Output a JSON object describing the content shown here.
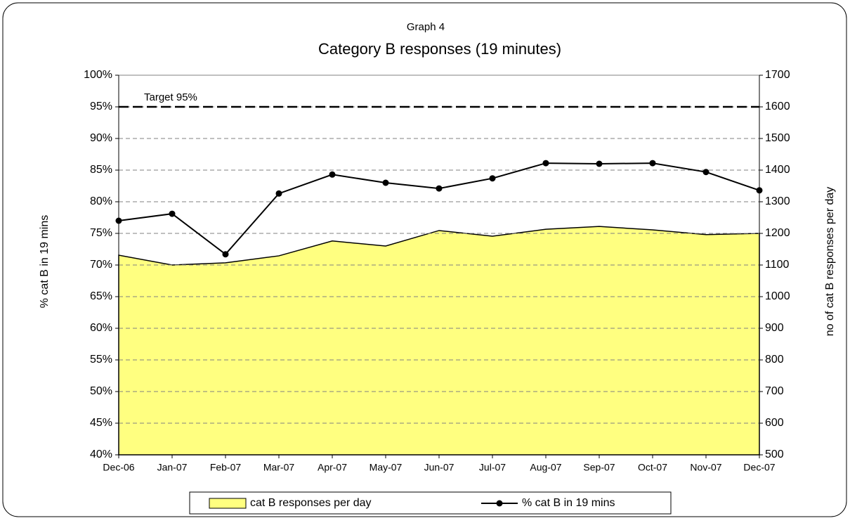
{
  "chart_data": {
    "type": "combo",
    "supertitle": "Graph 4",
    "title": "Category B responses (19 minutes)",
    "y_label": "% cat B in 19 mins",
    "y2_label": "no of cat B responses per day",
    "categories": [
      "Dec-06",
      "Jan-07",
      "Feb-07",
      "Mar-07",
      "Apr-07",
      "May-07",
      "Jun-07",
      "Jul-07",
      "Aug-07",
      "Sep-07",
      "Oct-07",
      "Nov-07",
      "Dec-07"
    ],
    "series": [
      {
        "name": "cat B responses per day",
        "type": "area",
        "axis": "y2",
        "color": "#ffff80",
        "values": [
          1131,
          1100,
          1107,
          1129,
          1176,
          1160,
          1209,
          1191,
          1213,
          1222,
          1211,
          1196,
          1200
        ]
      },
      {
        "name": "% cat B in 19 mins",
        "type": "line",
        "axis": "y",
        "color": "#000000",
        "values": [
          77.0,
          78.1,
          71.7,
          81.3,
          84.3,
          83.0,
          82.1,
          83.7,
          86.1,
          86.0,
          86.1,
          84.7,
          81.8
        ]
      }
    ],
    "ylim": [
      40,
      100
    ],
    "yticks": [
      {
        "value": 40,
        "label": "40%"
      },
      {
        "value": 45,
        "label": "45%"
      },
      {
        "value": 50,
        "label": "50%"
      },
      {
        "value": 55,
        "label": "55%"
      },
      {
        "value": 60,
        "label": "60%"
      },
      {
        "value": 65,
        "label": "65%"
      },
      {
        "value": 70,
        "label": "70%"
      },
      {
        "value": 75,
        "label": "75%"
      },
      {
        "value": 80,
        "label": "80%"
      },
      {
        "value": 85,
        "label": "85%"
      },
      {
        "value": 90,
        "label": "90%"
      },
      {
        "value": 95,
        "label": "95%"
      },
      {
        "value": 100,
        "label": "100%"
      }
    ],
    "y2lim": [
      500,
      1700
    ],
    "y2ticks": [
      500,
      600,
      700,
      800,
      900,
      1000,
      1100,
      1200,
      1300,
      1400,
      1500,
      1600,
      1700
    ],
    "grid": true,
    "legend": "bottom",
    "annotations": [
      {
        "text": "Target 95%",
        "value": 95
      }
    ]
  }
}
